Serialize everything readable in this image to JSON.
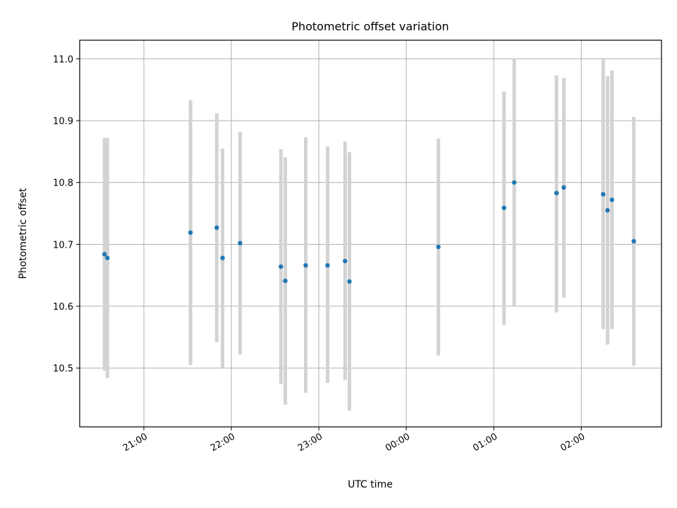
{
  "chart_data": {
    "type": "scatter",
    "title": "Photometric offset variation",
    "xlabel": "UTC time",
    "ylabel": "Photometric offset",
    "x_axis": "time (UTC, hours; evening to next morning)",
    "xlim": [
      "20:16",
      "02:55"
    ],
    "ylim": [
      10.405,
      11.03
    ],
    "grid": true,
    "x_ticks": [
      {
        "time": "21:00",
        "label": "21:00"
      },
      {
        "time": "22:00",
        "label": "22:00"
      },
      {
        "time": "23:00",
        "label": "23:00"
      },
      {
        "time": "00:00",
        "label": "00:00"
      },
      {
        "time": "01:00",
        "label": "01:00"
      },
      {
        "time": "02:00",
        "label": "02:00"
      }
    ],
    "y_ticks": [
      "10.5",
      "10.6",
      "10.7",
      "10.8",
      "10.9",
      "11.0"
    ],
    "marker_color": "#1f77b4",
    "errorbar_color": "#d3d3d3",
    "points": [
      {
        "time": "20:33",
        "y": 10.684,
        "ymin": 10.496,
        "ymax": 10.872
      },
      {
        "time": "20:35",
        "y": 10.678,
        "ymin": 10.484,
        "ymax": 10.872
      },
      {
        "time": "21:32",
        "y": 10.719,
        "ymin": 10.505,
        "ymax": 10.933
      },
      {
        "time": "21:50",
        "y": 10.727,
        "ymin": 10.542,
        "ymax": 10.912
      },
      {
        "time": "21:54",
        "y": 10.678,
        "ymin": 10.5,
        "ymax": 10.855
      },
      {
        "time": "22:06",
        "y": 10.702,
        "ymin": 10.522,
        "ymax": 10.882
      },
      {
        "time": "22:34",
        "y": 10.664,
        "ymin": 10.474,
        "ymax": 10.854
      },
      {
        "time": "22:37",
        "y": 10.641,
        "ymin": 10.441,
        "ymax": 10.841
      },
      {
        "time": "22:51",
        "y": 10.666,
        "ymin": 10.46,
        "ymax": 10.873
      },
      {
        "time": "23:06",
        "y": 10.666,
        "ymin": 10.476,
        "ymax": 10.858
      },
      {
        "time": "23:18",
        "y": 10.673,
        "ymin": 10.481,
        "ymax": 10.866
      },
      {
        "time": "23:21",
        "y": 10.64,
        "ymin": 10.431,
        "ymax": 10.849
      },
      {
        "time": "00:22",
        "y": 10.696,
        "ymin": 10.52,
        "ymax": 10.871
      },
      {
        "time": "01:07",
        "y": 10.759,
        "ymin": 10.57,
        "ymax": 10.947
      },
      {
        "time": "01:14",
        "y": 10.8,
        "ymin": 10.6,
        "ymax": 11.0
      },
      {
        "time": "01:43",
        "y": 10.783,
        "ymin": 10.59,
        "ymax": 10.973
      },
      {
        "time": "01:48",
        "y": 10.792,
        "ymin": 10.614,
        "ymax": 10.969
      },
      {
        "time": "02:15",
        "y": 10.781,
        "ymin": 10.563,
        "ymax": 10.999
      },
      {
        "time": "02:18",
        "y": 10.755,
        "ymin": 10.538,
        "ymax": 10.972
      },
      {
        "time": "02:21",
        "y": 10.772,
        "ymin": 10.563,
        "ymax": 10.981
      },
      {
        "time": "02:36",
        "y": 10.705,
        "ymin": 10.504,
        "ymax": 10.906
      }
    ]
  }
}
